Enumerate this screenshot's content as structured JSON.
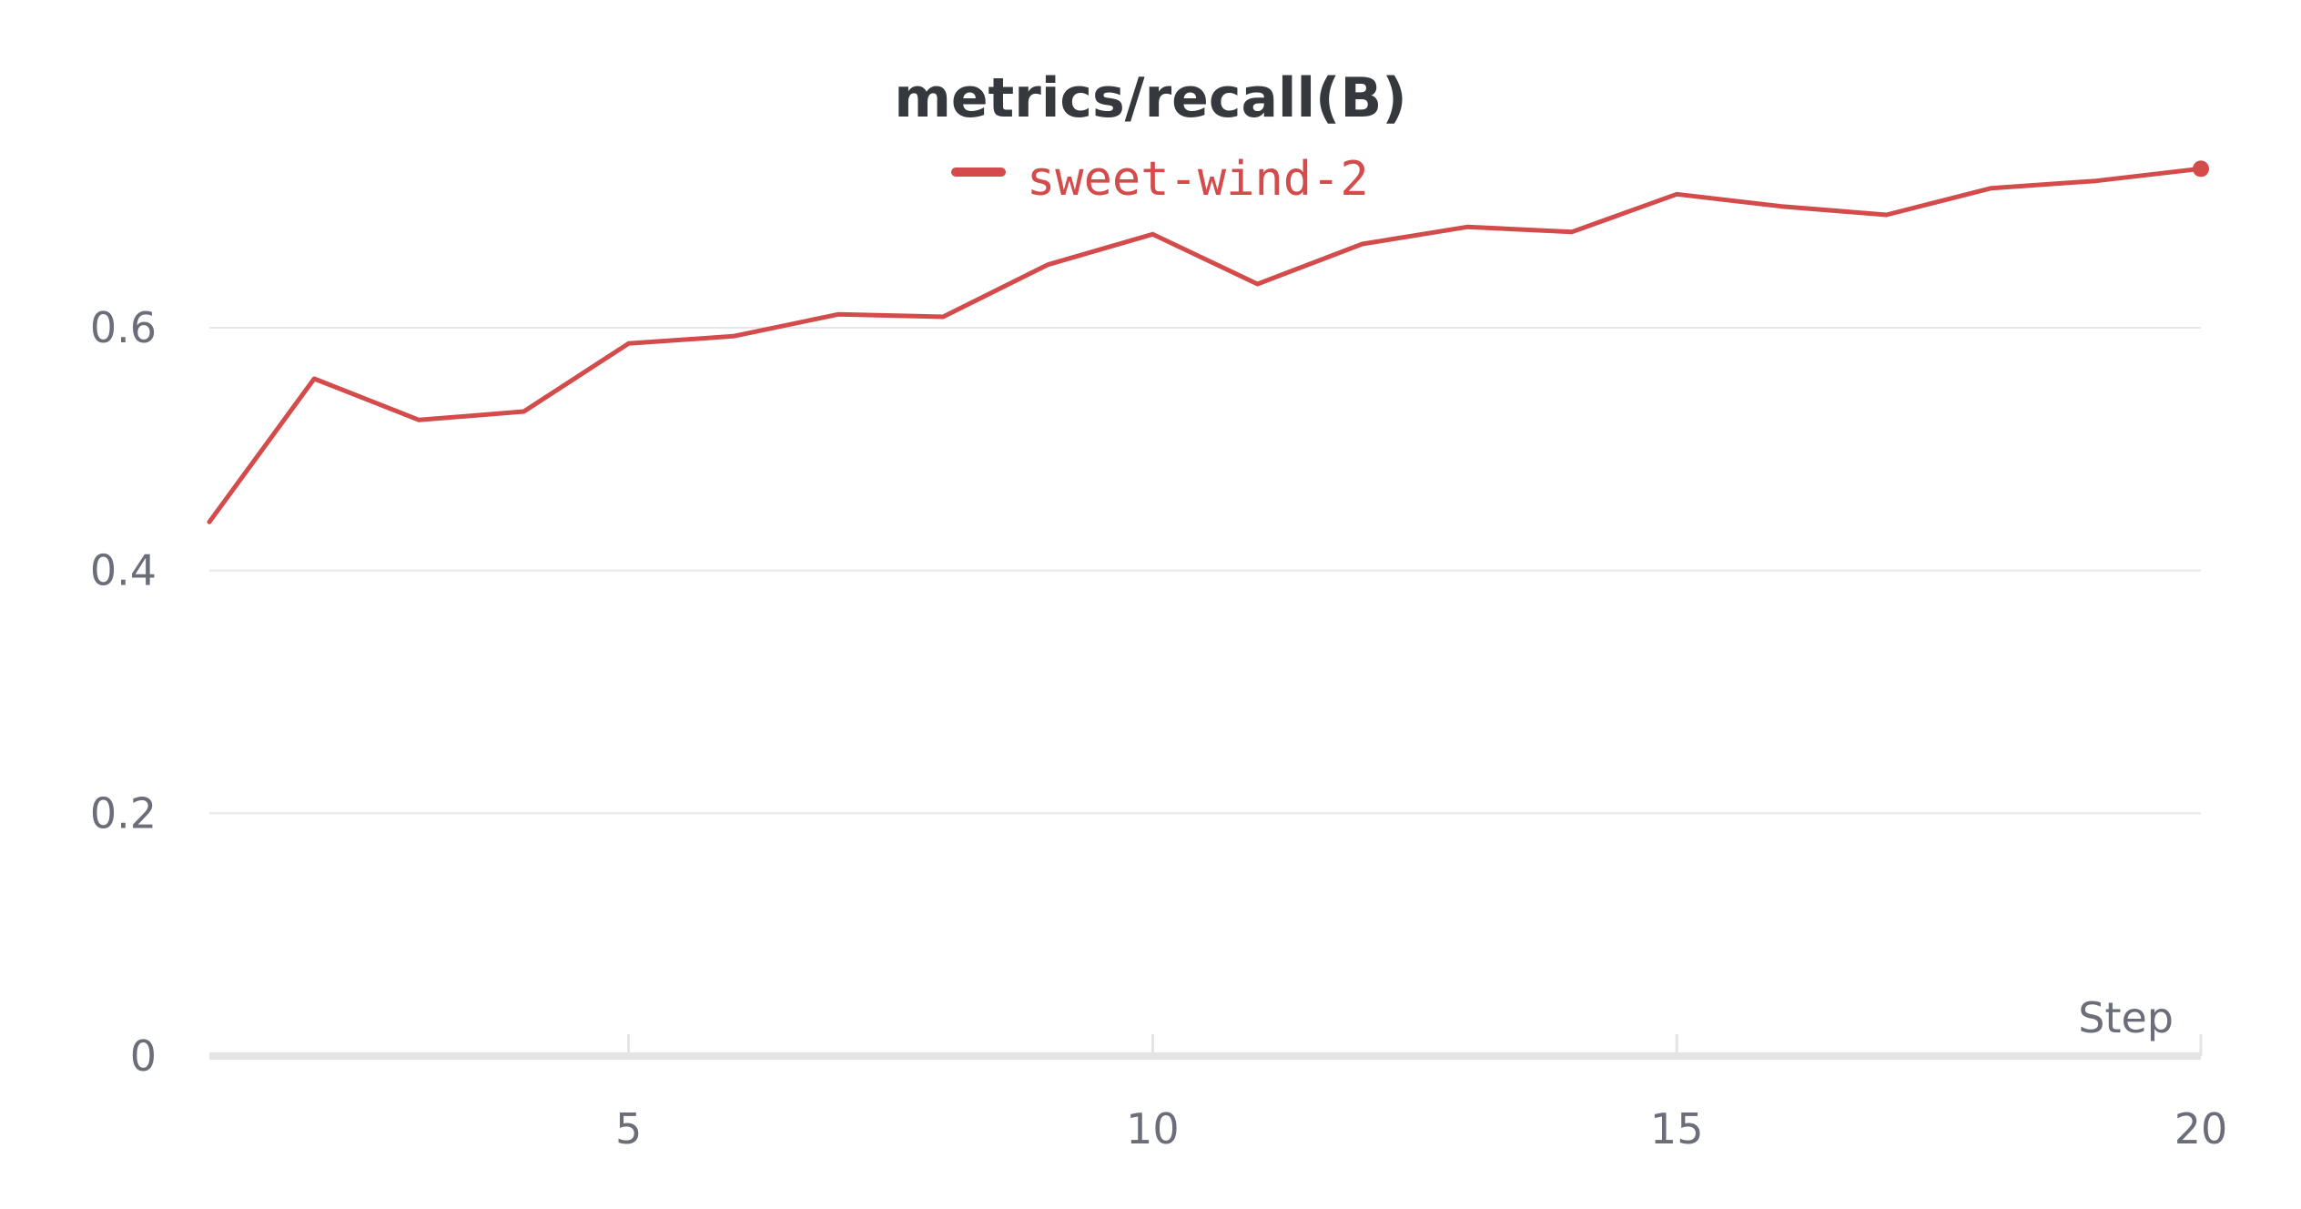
{
  "chart_data": {
    "type": "line",
    "title": "metrics/recall(B)",
    "xlabel": "Step",
    "ylabel": "",
    "xlim": [
      1,
      20
    ],
    "ylim": [
      0,
      0.75
    ],
    "x_ticks": [
      5,
      10,
      15,
      20
    ],
    "y_ticks": [
      0,
      0.2,
      0.4,
      0.6
    ],
    "x_tick_labels": [
      "5",
      "10",
      "15",
      "20"
    ],
    "y_tick_labels": [
      "0",
      "0.2",
      "0.4",
      "0.6"
    ],
    "grid": true,
    "legend_position": "top-center",
    "series": [
      {
        "name": "sweet-wind-2",
        "color": "#d44b4b",
        "x": [
          1,
          2,
          3,
          4,
          5,
          6,
          7,
          8,
          9,
          10,
          11,
          12,
          13,
          14,
          15,
          16,
          17,
          18,
          19,
          20
        ],
        "y": [
          0.44,
          0.558,
          0.524,
          0.531,
          0.587,
          0.593,
          0.611,
          0.609,
          0.652,
          0.677,
          0.636,
          0.669,
          0.683,
          0.679,
          0.71,
          0.7,
          0.693,
          0.715,
          0.721,
          0.731
        ]
      }
    ]
  }
}
